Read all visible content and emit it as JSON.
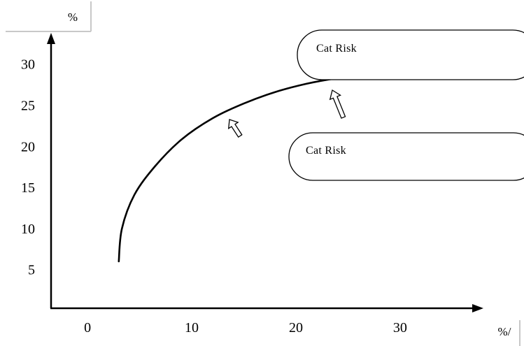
{
  "chart_data": {
    "type": "line",
    "title": "",
    "xlabel": "%/",
    "ylabel": "%",
    "xlim": [
      -3.5,
      38
    ],
    "ylim": [
      0.3,
      33.8
    ],
    "x_ticks": [
      0,
      10,
      20,
      30
    ],
    "y_ticks": [
      5,
      10,
      15,
      20,
      25,
      30
    ],
    "grid": false,
    "series": [
      {
        "x": [
          3,
          3.3,
          4.5,
          6.5,
          9,
          12,
          15,
          18,
          21,
          24,
          27,
          30,
          31
        ],
        "y": [
          6,
          10,
          14.1,
          17.6,
          20.8,
          23.4,
          25.2,
          26.6,
          27.6,
          28.3,
          28.8,
          29.0,
          29.0
        ]
      }
    ],
    "annotations": [
      {
        "text": "Cat Risk"
      },
      {
        "text": "Cat Risk"
      }
    ]
  },
  "colors": {
    "line": "#000000",
    "axis": "#000000",
    "frame": "#c8c8c8",
    "background": "#ffffff"
  }
}
